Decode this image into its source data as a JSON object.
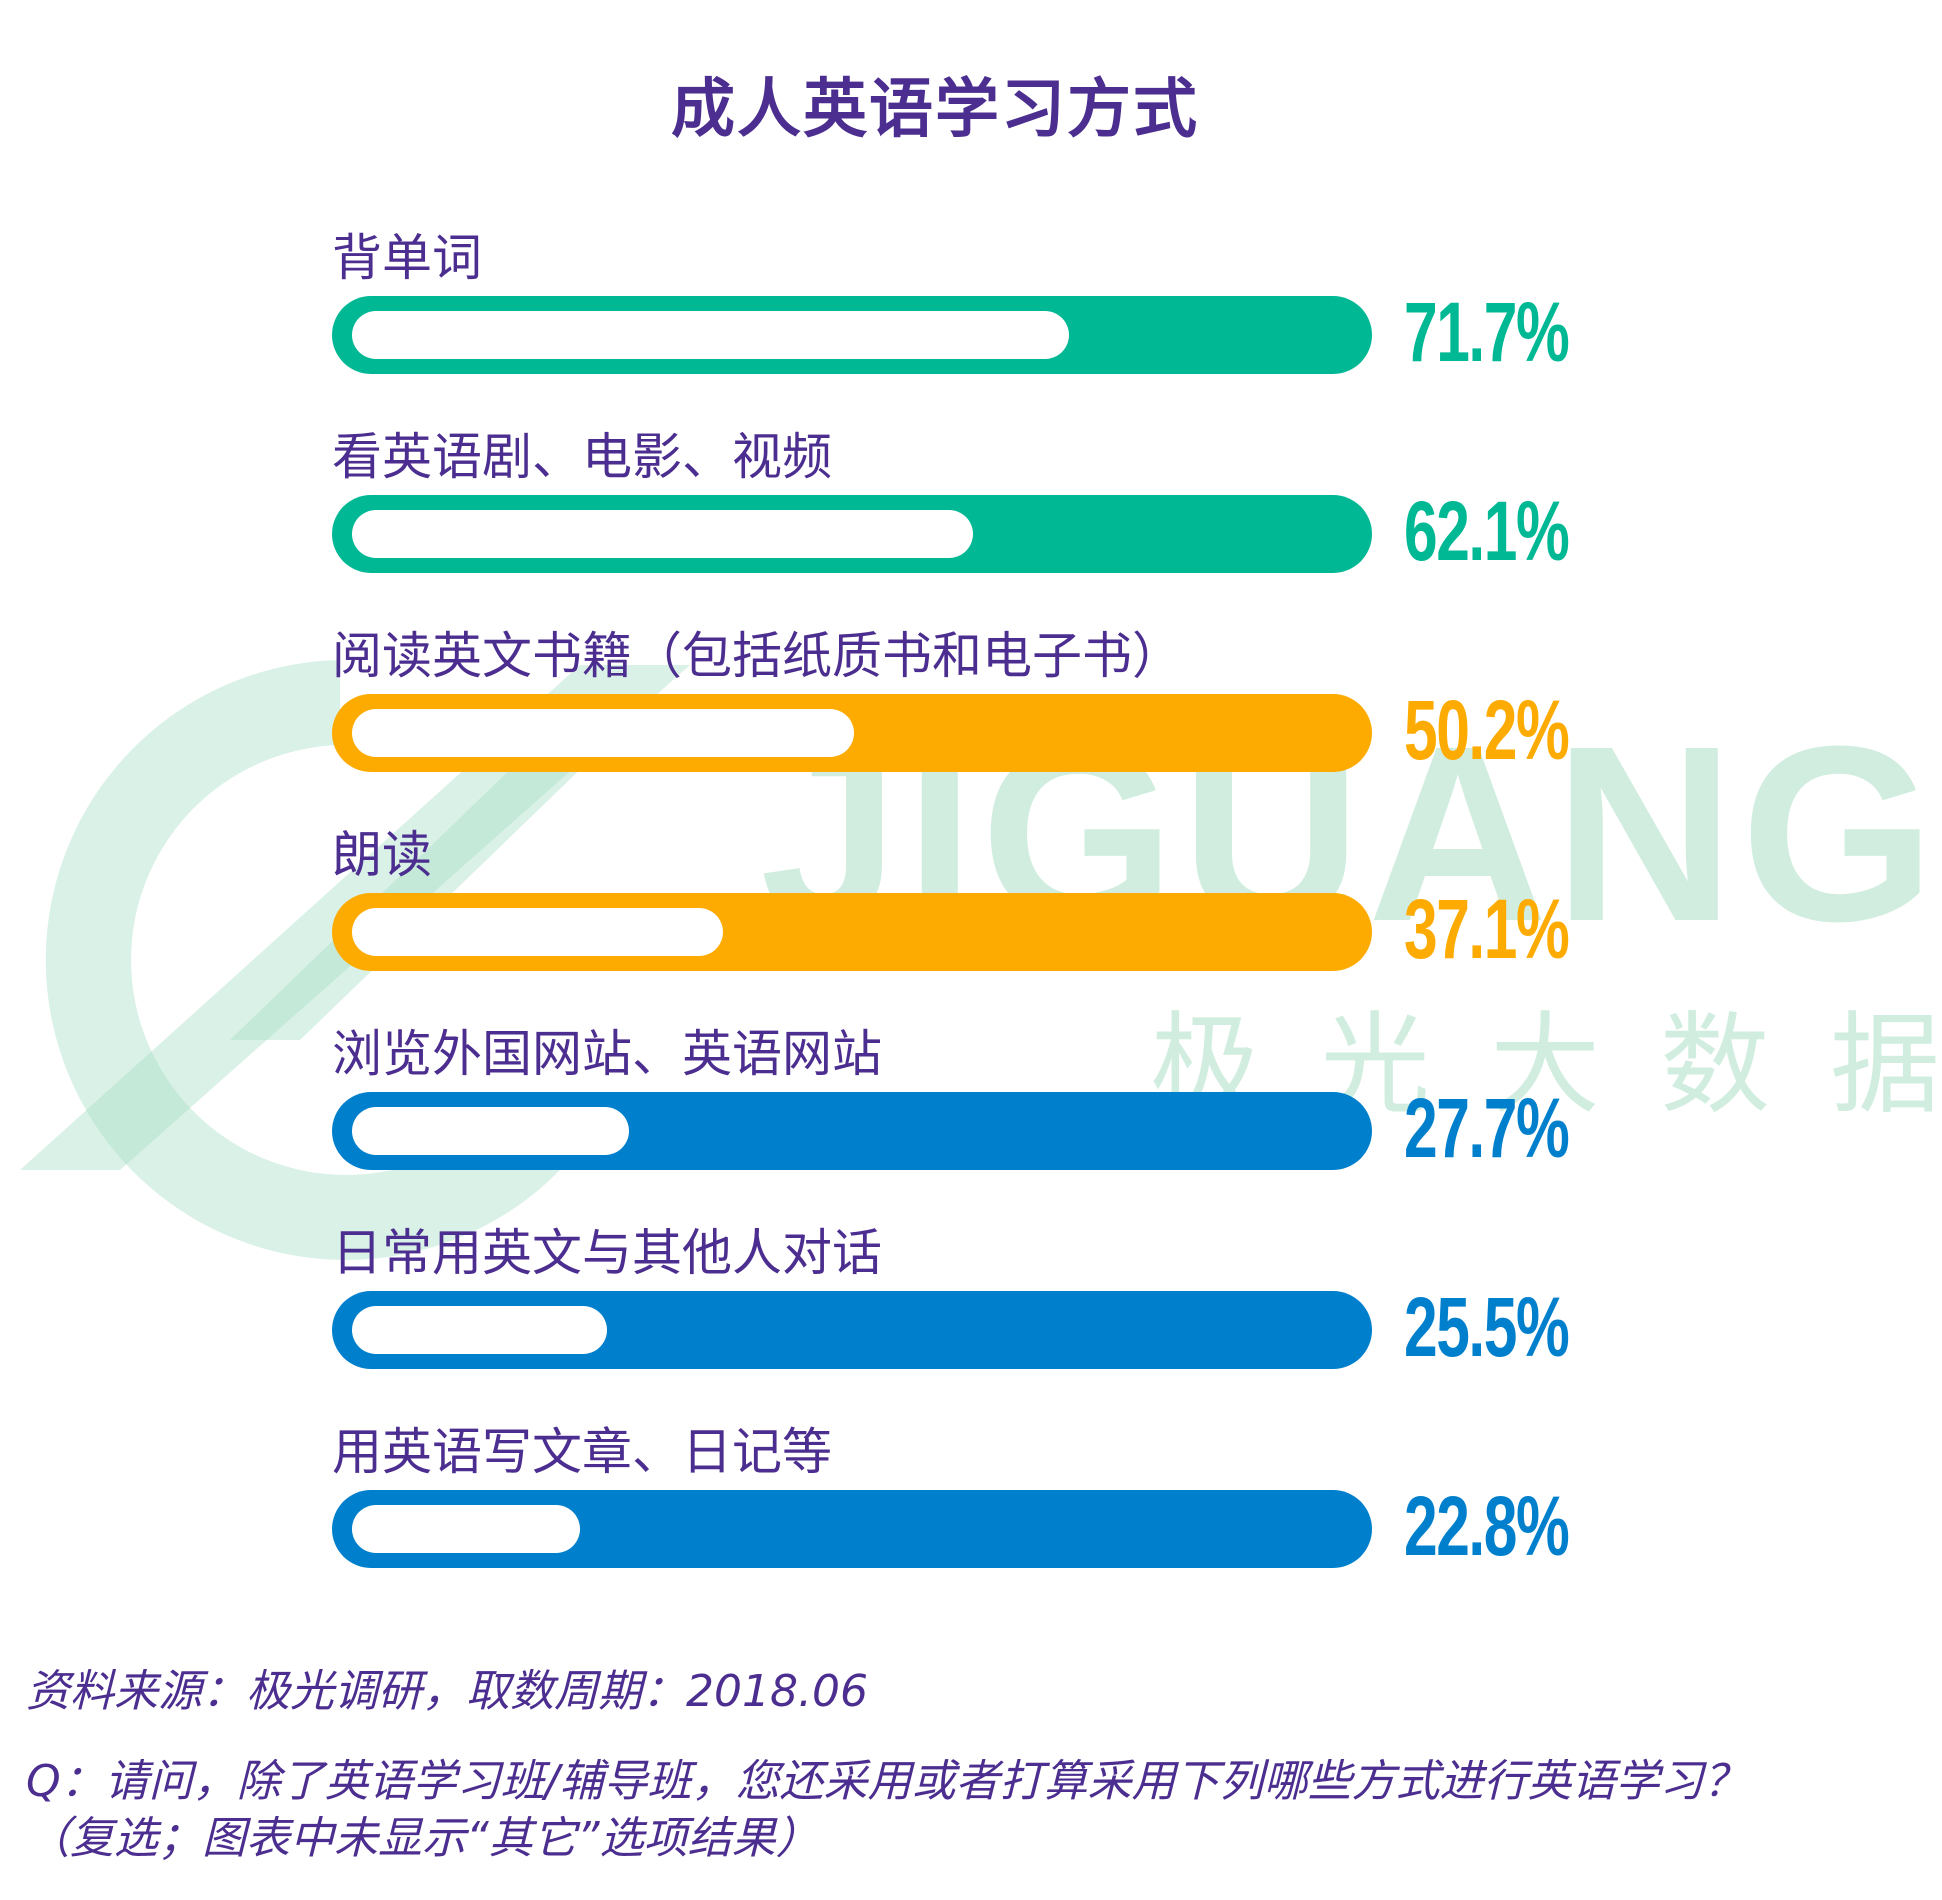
{
  "watermark": {
    "brand": "JIGUANG",
    "brand_cn": "极光大数据"
  },
  "chart_data": {
    "type": "bar",
    "orientation": "horizontal",
    "title": "成人英语学习方式",
    "categories": [
      "背单词",
      "看英语剧、电影、视频",
      "阅读英文书籍（包括纸质书和电子书）",
      "朗读",
      "浏览外国网站、英语网站",
      "日常用英文与其他人对话",
      "用英语写文章、日记等"
    ],
    "values": [
      71.7,
      62.1,
      50.2,
      37.1,
      27.7,
      25.5,
      22.8
    ],
    "value_labels": [
      "71.7%",
      "62.1%",
      "50.2%",
      "37.1%",
      "27.7%",
      "25.5%",
      "22.8%"
    ],
    "unit": "%",
    "xlim": [
      0,
      100
    ],
    "colors": [
      "#00b894",
      "#00b894",
      "#fdab00",
      "#fdab00",
      "#0080cc",
      "#0080cc",
      "#0080cc"
    ],
    "grid": false,
    "legend": "none"
  },
  "footnotes": {
    "source": "资料来源：极光调研，取数周期：2018.06",
    "question": "Q：请问，除了英语学习班/辅导班，您还采用或者打算采用下列哪些方式进行英语学习？",
    "note": "（复选；图表中未显示“其它”选项结果）"
  }
}
